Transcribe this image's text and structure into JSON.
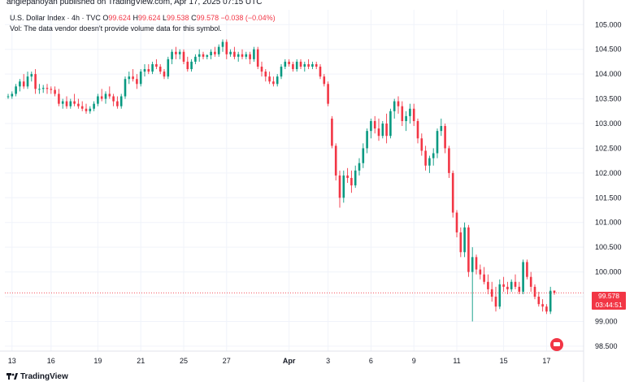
{
  "header": {
    "published_by": "anglepanoyan published on TradingView.com, Apr 17, 2025 07:15 UTC"
  },
  "legend": {
    "symbol": "U.S. Dollar Index · 4h · TVC",
    "o_label": "O",
    "o_value": "99.624",
    "h_label": "H",
    "h_value": "99.624",
    "l_label": "L",
    "l_value": "99.538",
    "c_label": "C",
    "c_value": "99.578",
    "change": "−0.038 (−0.04%)",
    "vol_note": "Vol: The data vendor doesn't provide volume data for this symbol."
  },
  "price_tag": {
    "price": "99.578",
    "countdown": "03:44:51"
  },
  "brand": {
    "name": "TradingView"
  },
  "colors": {
    "up": "#089981",
    "down": "#f23645",
    "grid": "#f0f3fa",
    "axis_text": "#131722"
  },
  "chart_data": {
    "type": "candlestick",
    "title": "",
    "ylim": [
      98.4,
      105.3
    ],
    "y_ticks": [
      98.5,
      99.0,
      99.5,
      100.0,
      100.5,
      101.0,
      101.5,
      102.0,
      102.5,
      103.0,
      103.5,
      104.0,
      104.5,
      105.0
    ],
    "y_tick_labels": [
      "98.500",
      "99.000",
      "99.500",
      "100.000",
      "100.500",
      "101.000",
      "101.500",
      "102.000",
      "102.500",
      "103.000",
      "103.500",
      "104.000",
      "104.500",
      "105.000"
    ],
    "x_ticks": [
      {
        "label": "13",
        "index": 1
      },
      {
        "label": "16",
        "index": 11
      },
      {
        "label": "19",
        "index": 23
      },
      {
        "label": "21",
        "index": 34
      },
      {
        "label": "25",
        "index": 45
      },
      {
        "label": "27",
        "index": 56
      },
      {
        "label": "Apr",
        "index": 72
      },
      {
        "label": "3",
        "index": 82
      },
      {
        "label": "6",
        "index": 93
      },
      {
        "label": "9",
        "index": 104
      },
      {
        "label": "11",
        "index": 115
      },
      {
        "label": "15",
        "index": 127
      },
      {
        "label": "17",
        "index": 138
      }
    ],
    "last_price": 99.578,
    "candles": [
      [
        103.55,
        103.6,
        103.5,
        103.55
      ],
      [
        103.55,
        103.65,
        103.5,
        103.6
      ],
      [
        103.6,
        103.8,
        103.55,
        103.75
      ],
      [
        103.75,
        103.9,
        103.65,
        103.85
      ],
      [
        103.85,
        104.0,
        103.7,
        103.75
      ],
      [
        103.75,
        104.05,
        103.7,
        103.95
      ],
      [
        103.95,
        104.05,
        103.85,
        104.0
      ],
      [
        104.0,
        104.1,
        103.6,
        103.7
      ],
      [
        103.7,
        103.8,
        103.6,
        103.7
      ],
      [
        103.7,
        103.78,
        103.62,
        103.72
      ],
      [
        103.72,
        103.8,
        103.6,
        103.7
      ],
      [
        103.7,
        103.75,
        103.6,
        103.68
      ],
      [
        103.68,
        103.75,
        103.55,
        103.6
      ],
      [
        103.6,
        103.7,
        103.35,
        103.4
      ],
      [
        103.4,
        103.5,
        103.3,
        103.45
      ],
      [
        103.45,
        103.55,
        103.3,
        103.35
      ],
      [
        103.35,
        103.5,
        103.3,
        103.45
      ],
      [
        103.45,
        103.6,
        103.35,
        103.4
      ],
      [
        103.4,
        103.5,
        103.3,
        103.35
      ],
      [
        103.35,
        103.45,
        103.25,
        103.3
      ],
      [
        103.3,
        103.4,
        103.2,
        103.25
      ],
      [
        103.25,
        103.35,
        103.2,
        103.3
      ],
      [
        103.3,
        103.45,
        103.25,
        103.4
      ],
      [
        103.4,
        103.6,
        103.35,
        103.55
      ],
      [
        103.55,
        103.7,
        103.45,
        103.5
      ],
      [
        103.5,
        103.65,
        103.4,
        103.6
      ],
      [
        103.6,
        103.75,
        103.5,
        103.55
      ],
      [
        103.55,
        103.6,
        103.35,
        103.45
      ],
      [
        103.45,
        103.55,
        103.3,
        103.35
      ],
      [
        103.35,
        103.6,
        103.3,
        103.55
      ],
      [
        103.55,
        103.95,
        103.5,
        103.9
      ],
      [
        103.9,
        104.05,
        103.8,
        103.95
      ],
      [
        103.95,
        104.1,
        103.85,
        103.9
      ],
      [
        103.9,
        104.0,
        103.7,
        103.8
      ],
      [
        103.8,
        104.1,
        103.75,
        104.05
      ],
      [
        104.05,
        104.2,
        103.95,
        104.1
      ],
      [
        104.1,
        104.2,
        104.0,
        104.05
      ],
      [
        104.05,
        104.25,
        104.0,
        104.2
      ],
      [
        104.2,
        104.3,
        104.1,
        104.15
      ],
      [
        104.15,
        104.2,
        104.0,
        104.05
      ],
      [
        104.05,
        104.1,
        103.9,
        103.95
      ],
      [
        103.95,
        104.35,
        103.9,
        104.3
      ],
      [
        104.3,
        104.5,
        104.2,
        104.45
      ],
      [
        104.45,
        104.55,
        104.3,
        104.4
      ],
      [
        104.4,
        104.5,
        104.3,
        104.45
      ],
      [
        104.45,
        104.5,
        104.2,
        104.25
      ],
      [
        104.25,
        104.35,
        104.05,
        104.1
      ],
      [
        104.1,
        104.3,
        104.05,
        104.25
      ],
      [
        104.25,
        104.4,
        104.2,
        104.35
      ],
      [
        104.35,
        104.5,
        104.25,
        104.4
      ],
      [
        104.4,
        104.45,
        104.3,
        104.35
      ],
      [
        104.35,
        104.4,
        104.3,
        104.38
      ],
      [
        104.38,
        104.5,
        104.3,
        104.45
      ],
      [
        104.45,
        104.55,
        104.35,
        104.4
      ],
      [
        104.4,
        104.6,
        104.35,
        104.55
      ],
      [
        104.55,
        104.7,
        104.45,
        104.65
      ],
      [
        104.65,
        104.7,
        104.3,
        104.4
      ],
      [
        104.4,
        104.5,
        104.35,
        104.45
      ],
      [
        104.45,
        104.55,
        104.3,
        104.35
      ],
      [
        104.35,
        104.45,
        104.25,
        104.4
      ],
      [
        104.4,
        104.5,
        104.3,
        104.35
      ],
      [
        104.35,
        104.45,
        104.3,
        104.4
      ],
      [
        104.4,
        104.45,
        104.2,
        104.3
      ],
      [
        104.3,
        104.55,
        104.25,
        104.5
      ],
      [
        104.5,
        104.55,
        104.1,
        104.15
      ],
      [
        104.15,
        104.25,
        103.95,
        104.05
      ],
      [
        104.05,
        104.1,
        103.85,
        103.95
      ],
      [
        103.95,
        104.05,
        103.8,
        103.85
      ],
      [
        103.85,
        103.95,
        103.75,
        103.8
      ],
      [
        103.8,
        104.0,
        103.75,
        103.95
      ],
      [
        103.95,
        104.2,
        103.9,
        104.15
      ],
      [
        104.15,
        104.3,
        104.1,
        104.25
      ],
      [
        104.25,
        104.3,
        104.15,
        104.2
      ],
      [
        104.2,
        104.25,
        104.05,
        104.1
      ],
      [
        104.1,
        104.3,
        104.05,
        104.25
      ],
      [
        104.25,
        104.3,
        104.1,
        104.15
      ],
      [
        104.15,
        104.25,
        104.05,
        104.2
      ],
      [
        104.2,
        104.3,
        104.1,
        104.15
      ],
      [
        104.15,
        104.25,
        104.1,
        104.2
      ],
      [
        104.2,
        104.25,
        104.1,
        104.15
      ],
      [
        104.15,
        104.2,
        103.9,
        103.95
      ],
      [
        103.95,
        104.0,
        103.75,
        103.8
      ],
      [
        103.8,
        103.85,
        103.35,
        103.4
      ],
      [
        103.1,
        103.15,
        102.5,
        102.55
      ],
      [
        102.55,
        102.6,
        101.85,
        101.95
      ],
      [
        101.95,
        102.05,
        101.3,
        101.5
      ],
      [
        101.5,
        102.05,
        101.4,
        101.95
      ],
      [
        101.95,
        102.1,
        101.8,
        101.9
      ],
      [
        101.9,
        102.05,
        101.6,
        101.75
      ],
      [
        101.75,
        102.15,
        101.7,
        102.05
      ],
      [
        102.05,
        102.3,
        101.95,
        102.2
      ],
      [
        102.2,
        102.6,
        102.1,
        102.5
      ],
      [
        102.5,
        102.9,
        102.4,
        102.85
      ],
      [
        102.85,
        103.1,
        102.7,
        103.05
      ],
      [
        103.05,
        103.15,
        102.8,
        102.9
      ],
      [
        102.9,
        103.1,
        102.65,
        102.75
      ],
      [
        102.75,
        103.05,
        102.7,
        103.0
      ],
      [
        103.0,
        103.2,
        102.6,
        102.75
      ],
      [
        102.75,
        103.3,
        102.7,
        103.25
      ],
      [
        103.25,
        103.5,
        103.1,
        103.45
      ],
      [
        103.45,
        103.55,
        103.2,
        103.35
      ],
      [
        103.35,
        103.45,
        102.95,
        103.05
      ],
      [
        103.05,
        103.25,
        102.85,
        103.15
      ],
      [
        103.15,
        103.4,
        103.0,
        103.3
      ],
      [
        103.3,
        103.4,
        102.95,
        103.05
      ],
      [
        103.05,
        103.1,
        102.6,
        102.7
      ],
      [
        102.7,
        102.8,
        102.35,
        102.45
      ],
      [
        102.45,
        102.55,
        102.05,
        102.15
      ],
      [
        102.15,
        102.35,
        102.0,
        102.3
      ],
      [
        102.3,
        102.5,
        102.15,
        102.4
      ],
      [
        102.4,
        102.9,
        102.3,
        102.85
      ],
      [
        102.85,
        103.1,
        102.75,
        102.95
      ],
      [
        102.95,
        103.0,
        102.4,
        102.5
      ],
      [
        102.5,
        102.55,
        101.9,
        102.0
      ],
      [
        102.0,
        102.05,
        101.1,
        101.2
      ],
      [
        101.2,
        101.25,
        100.7,
        100.8
      ],
      [
        100.8,
        100.9,
        100.3,
        100.4
      ],
      [
        100.4,
        101.0,
        100.3,
        100.9
      ],
      [
        100.9,
        100.95,
        99.9,
        100.0
      ],
      [
        100.0,
        100.5,
        99.0,
        100.3
      ],
      [
        100.3,
        100.35,
        99.95,
        100.05
      ],
      [
        100.05,
        100.15,
        99.85,
        99.95
      ],
      [
        99.95,
        100.1,
        99.75,
        99.8
      ],
      [
        99.8,
        99.95,
        99.55,
        99.65
      ],
      [
        99.65,
        99.8,
        99.4,
        99.5
      ],
      [
        99.5,
        99.7,
        99.2,
        99.3
      ],
      [
        99.3,
        99.85,
        99.25,
        99.75
      ],
      [
        99.75,
        99.9,
        99.6,
        99.7
      ],
      [
        99.7,
        99.8,
        99.55,
        99.65
      ],
      [
        99.65,
        99.85,
        99.6,
        99.8
      ],
      [
        99.8,
        99.95,
        99.65,
        99.7
      ],
      [
        99.7,
        99.8,
        99.55,
        99.6
      ],
      [
        99.6,
        100.25,
        99.55,
        100.2
      ],
      [
        100.2,
        100.25,
        99.85,
        99.9
      ],
      [
        99.9,
        100.0,
        99.6,
        99.7
      ],
      [
        99.7,
        99.75,
        99.45,
        99.5
      ],
      [
        99.5,
        99.6,
        99.3,
        99.35
      ],
      [
        99.35,
        99.45,
        99.2,
        99.3
      ],
      [
        99.3,
        99.35,
        99.15,
        99.2
      ],
      [
        99.2,
        99.7,
        99.15,
        99.62
      ],
      [
        99.624,
        99.624,
        99.538,
        99.578
      ]
    ]
  }
}
